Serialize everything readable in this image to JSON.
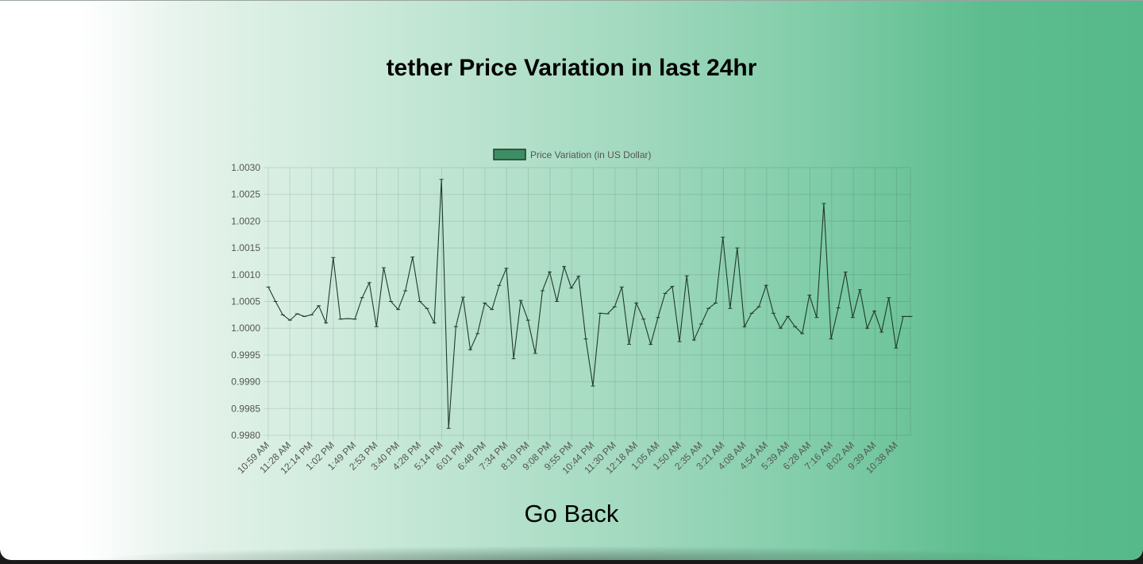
{
  "page": {
    "title": "tether Price Variation in last 24hr",
    "go_back_label": "Go Back"
  },
  "chart_data": {
    "type": "line",
    "title": "",
    "legend": "Price Variation (in US Dollar)",
    "legend_position": "top",
    "grid": true,
    "line_color": "#1f3a2a",
    "legend_fill": "#3f8d65",
    "ylim": [
      0.998,
      1.003
    ],
    "y_ticks": [
      "1.0030",
      "1.0025",
      "1.0020",
      "1.0015",
      "1.0010",
      "1.0005",
      "1.0000",
      "0.9995",
      "0.9990",
      "0.9985",
      "0.9980"
    ],
    "x_ticks": [
      "10:59 AM",
      "11:28 AM",
      "12:14 PM",
      "1:02 PM",
      "1:49 PM",
      "2:53 PM",
      "3:40 PM",
      "4:28 PM",
      "5:14 PM",
      "6:01 PM",
      "6:48 PM",
      "7:34 PM",
      "8:19 PM",
      "9:08 PM",
      "9:55 PM",
      "10:44 PM",
      "11:30 PM",
      "12:18 AM",
      "1:05 AM",
      "1:50 AM",
      "2:35 AM",
      "3:21 AM",
      "4:08 AM",
      "4:54 AM",
      "5:39 AM",
      "6:28 AM",
      "7:16 AM",
      "8:02 AM",
      "9:39 AM",
      "10:38 AM"
    ],
    "series": [
      {
        "name": "Price Variation (in US Dollar)",
        "values": [
          1.00077,
          1.0005,
          1.00025,
          1.00015,
          1.00027,
          1.00022,
          1.00025,
          1.00042,
          1.0001,
          1.00132,
          1.00017,
          1.00018,
          1.00017,
          1.00057,
          1.00085,
          1.00003,
          1.00113,
          1.0005,
          1.00035,
          1.0007,
          1.00133,
          1.0005,
          1.00037,
          1.0001,
          1.00278,
          0.99813,
          1.00003,
          1.00058,
          0.9996,
          0.9999,
          1.00047,
          1.00035,
          1.0008,
          1.00112,
          0.99943,
          1.00052,
          1.00015,
          0.99953,
          1.0007,
          1.00105,
          1.0005,
          1.00115,
          1.00075,
          1.00097,
          0.9998,
          0.99892,
          1.00028,
          1.00027,
          1.0004,
          1.00077,
          0.9997,
          1.00047,
          1.00017,
          0.9997,
          1.0002,
          1.00065,
          1.00078,
          0.99975,
          1.00098,
          0.99978,
          1.00008,
          1.00037,
          1.00047,
          1.0017,
          1.00037,
          1.0015,
          1.00003,
          1.00028,
          1.0004,
          1.0008,
          1.00028,
          1.0,
          1.00022,
          1.00003,
          0.9999,
          1.00062,
          1.0002,
          1.00233,
          0.9998,
          1.00038,
          1.00105,
          1.0002,
          1.00072,
          1.0,
          1.00032,
          0.99993,
          1.00057,
          0.99963,
          1.00022,
          1.00022
        ]
      }
    ]
  }
}
